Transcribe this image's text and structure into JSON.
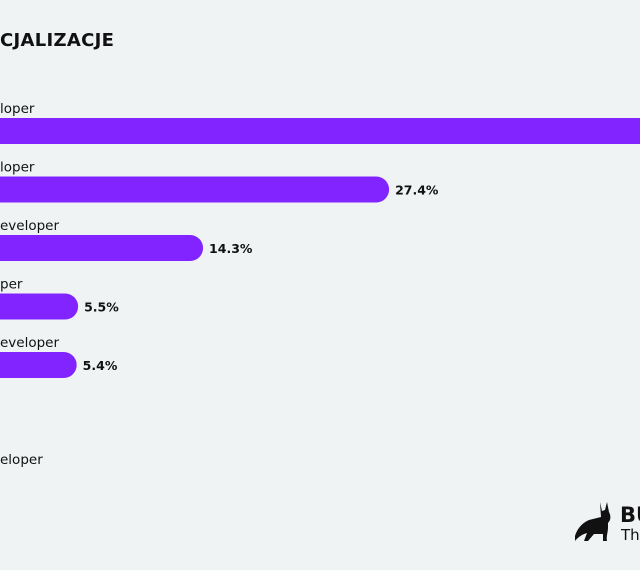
{
  "title": "CJALIZACJE",
  "brand": {
    "name": "BU",
    "tagline": "Th"
  },
  "chart_data": {
    "type": "bar",
    "orientation": "horizontal",
    "title": "CJALIZACJE",
    "categories": [
      "loper",
      "loper",
      "eveloper",
      "per",
      "eveloper",
      "",
      "eloper"
    ],
    "values": [
      null,
      27.4,
      14.3,
      5.5,
      5.4,
      null,
      null
    ],
    "value_labels": [
      "",
      "27.4%",
      "14.3%",
      "5.5%",
      "5.4%",
      "",
      ""
    ],
    "bar_color": "#8124ff",
    "grid": false
  }
}
